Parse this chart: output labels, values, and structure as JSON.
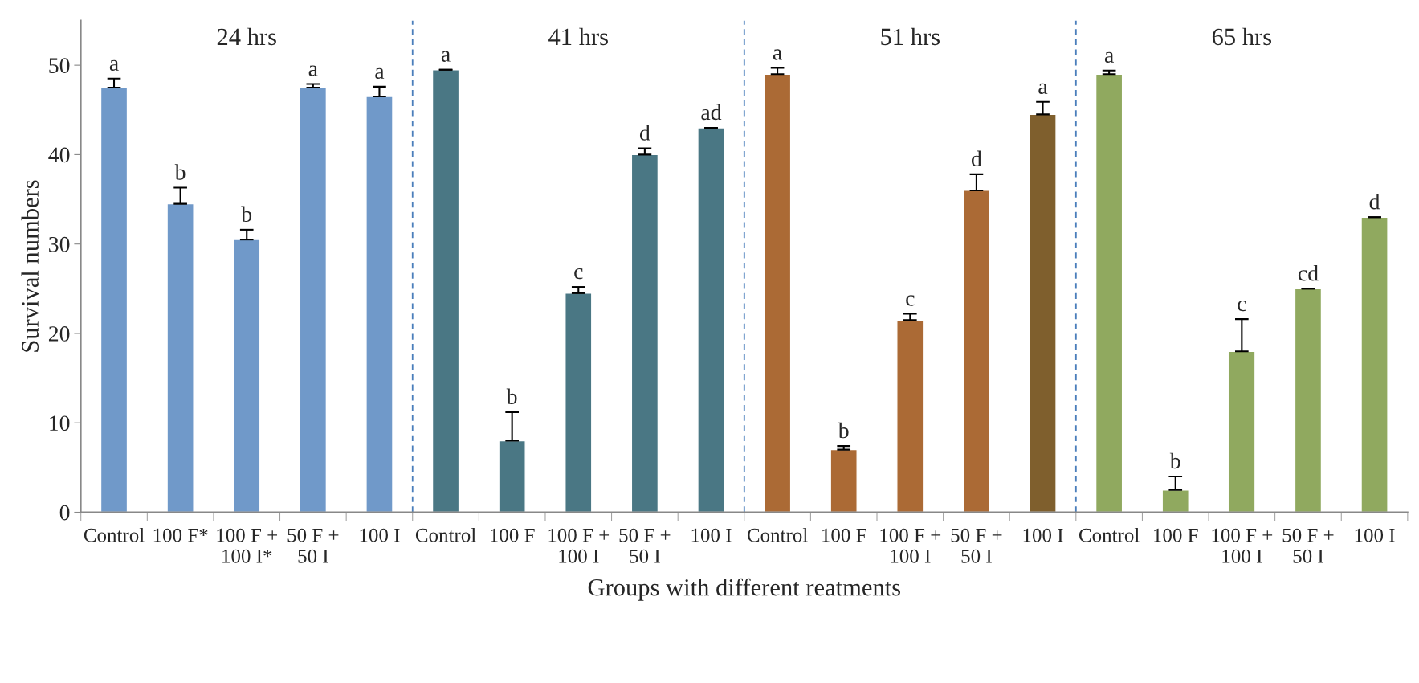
{
  "chart_data": {
    "type": "bar",
    "xlabel": "Groups with different reatments",
    "ylabel": "Survival numbers",
    "categories": [
      "Control",
      "100 F*",
      "100 F +\n100 I*",
      "50 F +\n50 I",
      "100 I",
      "Control",
      "100 F",
      "100 F +\n100 I",
      "50 F +\n50 I",
      "100 I",
      "Control",
      "100 F",
      "100 F +\n100 I",
      "50 F +\n50 I",
      "100 I",
      "Control",
      "100 F",
      "100 F +\n100 I",
      "50 F +\n50 I",
      "100 I"
    ],
    "values": [
      47.5,
      34.5,
      30.5,
      47.5,
      46.5,
      49.5,
      8,
      24.5,
      40,
      43,
      49,
      7,
      21.5,
      36,
      44.5,
      49,
      2.5,
      18,
      25,
      33
    ],
    "colors": [
      "#7099c9",
      "#7099c9",
      "#7099c9",
      "#7099c9",
      "#7099c9",
      "#4a7784",
      "#4a7784",
      "#4a7784",
      "#4a7784",
      "#4a7784",
      "#ab6a35",
      "#ab6a35",
      "#ab6a35",
      "#ab6a35",
      "#7f5f2d",
      "#90a95f",
      "#90a95f",
      "#90a95f",
      "#90a95f",
      "#90a95f"
    ],
    "errors": [
      [
        47.5,
        48.5
      ],
      [
        34.5,
        36.3
      ],
      [
        30.5,
        31.6
      ],
      [
        47.5,
        47.9
      ],
      [
        46.5,
        47.6
      ],
      [
        49.5,
        49.5
      ],
      [
        8,
        11.2
      ],
      [
        24.5,
        25.2
      ],
      [
        40,
        40.7
      ],
      [
        43,
        43
      ],
      [
        49,
        49.7
      ],
      [
        7,
        7.4
      ],
      [
        21.5,
        22.2
      ],
      [
        36,
        37.8
      ],
      [
        44.5,
        45.9
      ],
      [
        49,
        49.4
      ],
      [
        2.5,
        4
      ],
      [
        18,
        21.6
      ],
      [
        25,
        25
      ],
      [
        33,
        33
      ]
    ],
    "value_labels": [
      "a",
      "b",
      "b",
      "a",
      "a",
      "a",
      "b",
      "c",
      "d",
      "ad",
      "a",
      "b",
      "c",
      "d",
      "a",
      "a",
      "b",
      "c",
      "cd",
      "d"
    ],
    "ylim": [
      0,
      55
    ],
    "yticks": [
      0,
      10,
      20,
      30,
      40,
      50
    ],
    "grid": false,
    "annotations": [
      "24 hrs",
      "41 hrs",
      "51 hrs",
      "65 hrs"
    ]
  }
}
